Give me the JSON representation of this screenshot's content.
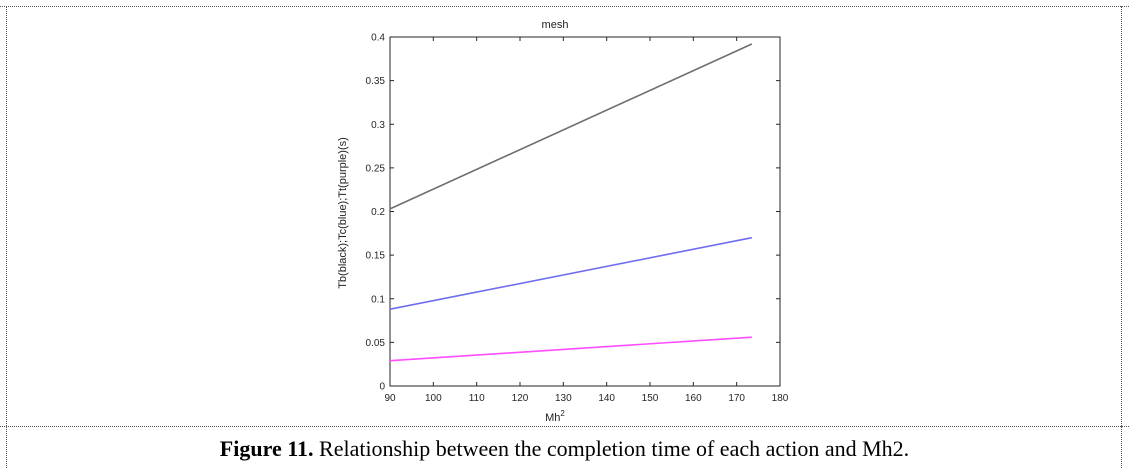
{
  "chart_data": {
    "type": "line",
    "title": "mesh",
    "xlabel_base": "Mh",
    "xlabel_sup": "2",
    "ylabel": "Tb(black);Tc(blue);Tt(purple)(s)",
    "xlim": [
      90,
      180
    ],
    "ylim": [
      0,
      0.4
    ],
    "xticks": [
      "90",
      "100",
      "110",
      "120",
      "130",
      "140",
      "150",
      "160",
      "170",
      "180"
    ],
    "yticks": [
      "0",
      "0.05",
      "0.1",
      "0.15",
      "0.2",
      "0.25",
      "0.3",
      "0.35",
      "0.4"
    ],
    "grid": false,
    "series": [
      {
        "color": "#6e6e6e",
        "x": [
          90,
          173.5
        ],
        "y": [
          0.203,
          0.392
        ]
      },
      {
        "color": "#6f6ef0",
        "x": [
          90,
          173.5
        ],
        "y": [
          0.088,
          0.17
        ]
      },
      {
        "color": "#ff4dff",
        "x": [
          90,
          173.5
        ],
        "y": [
          0.029,
          0.056
        ]
      }
    ]
  },
  "caption": {
    "label": "Figure 11.",
    "text": "Relationship between the completion time of each action and Mh2."
  }
}
